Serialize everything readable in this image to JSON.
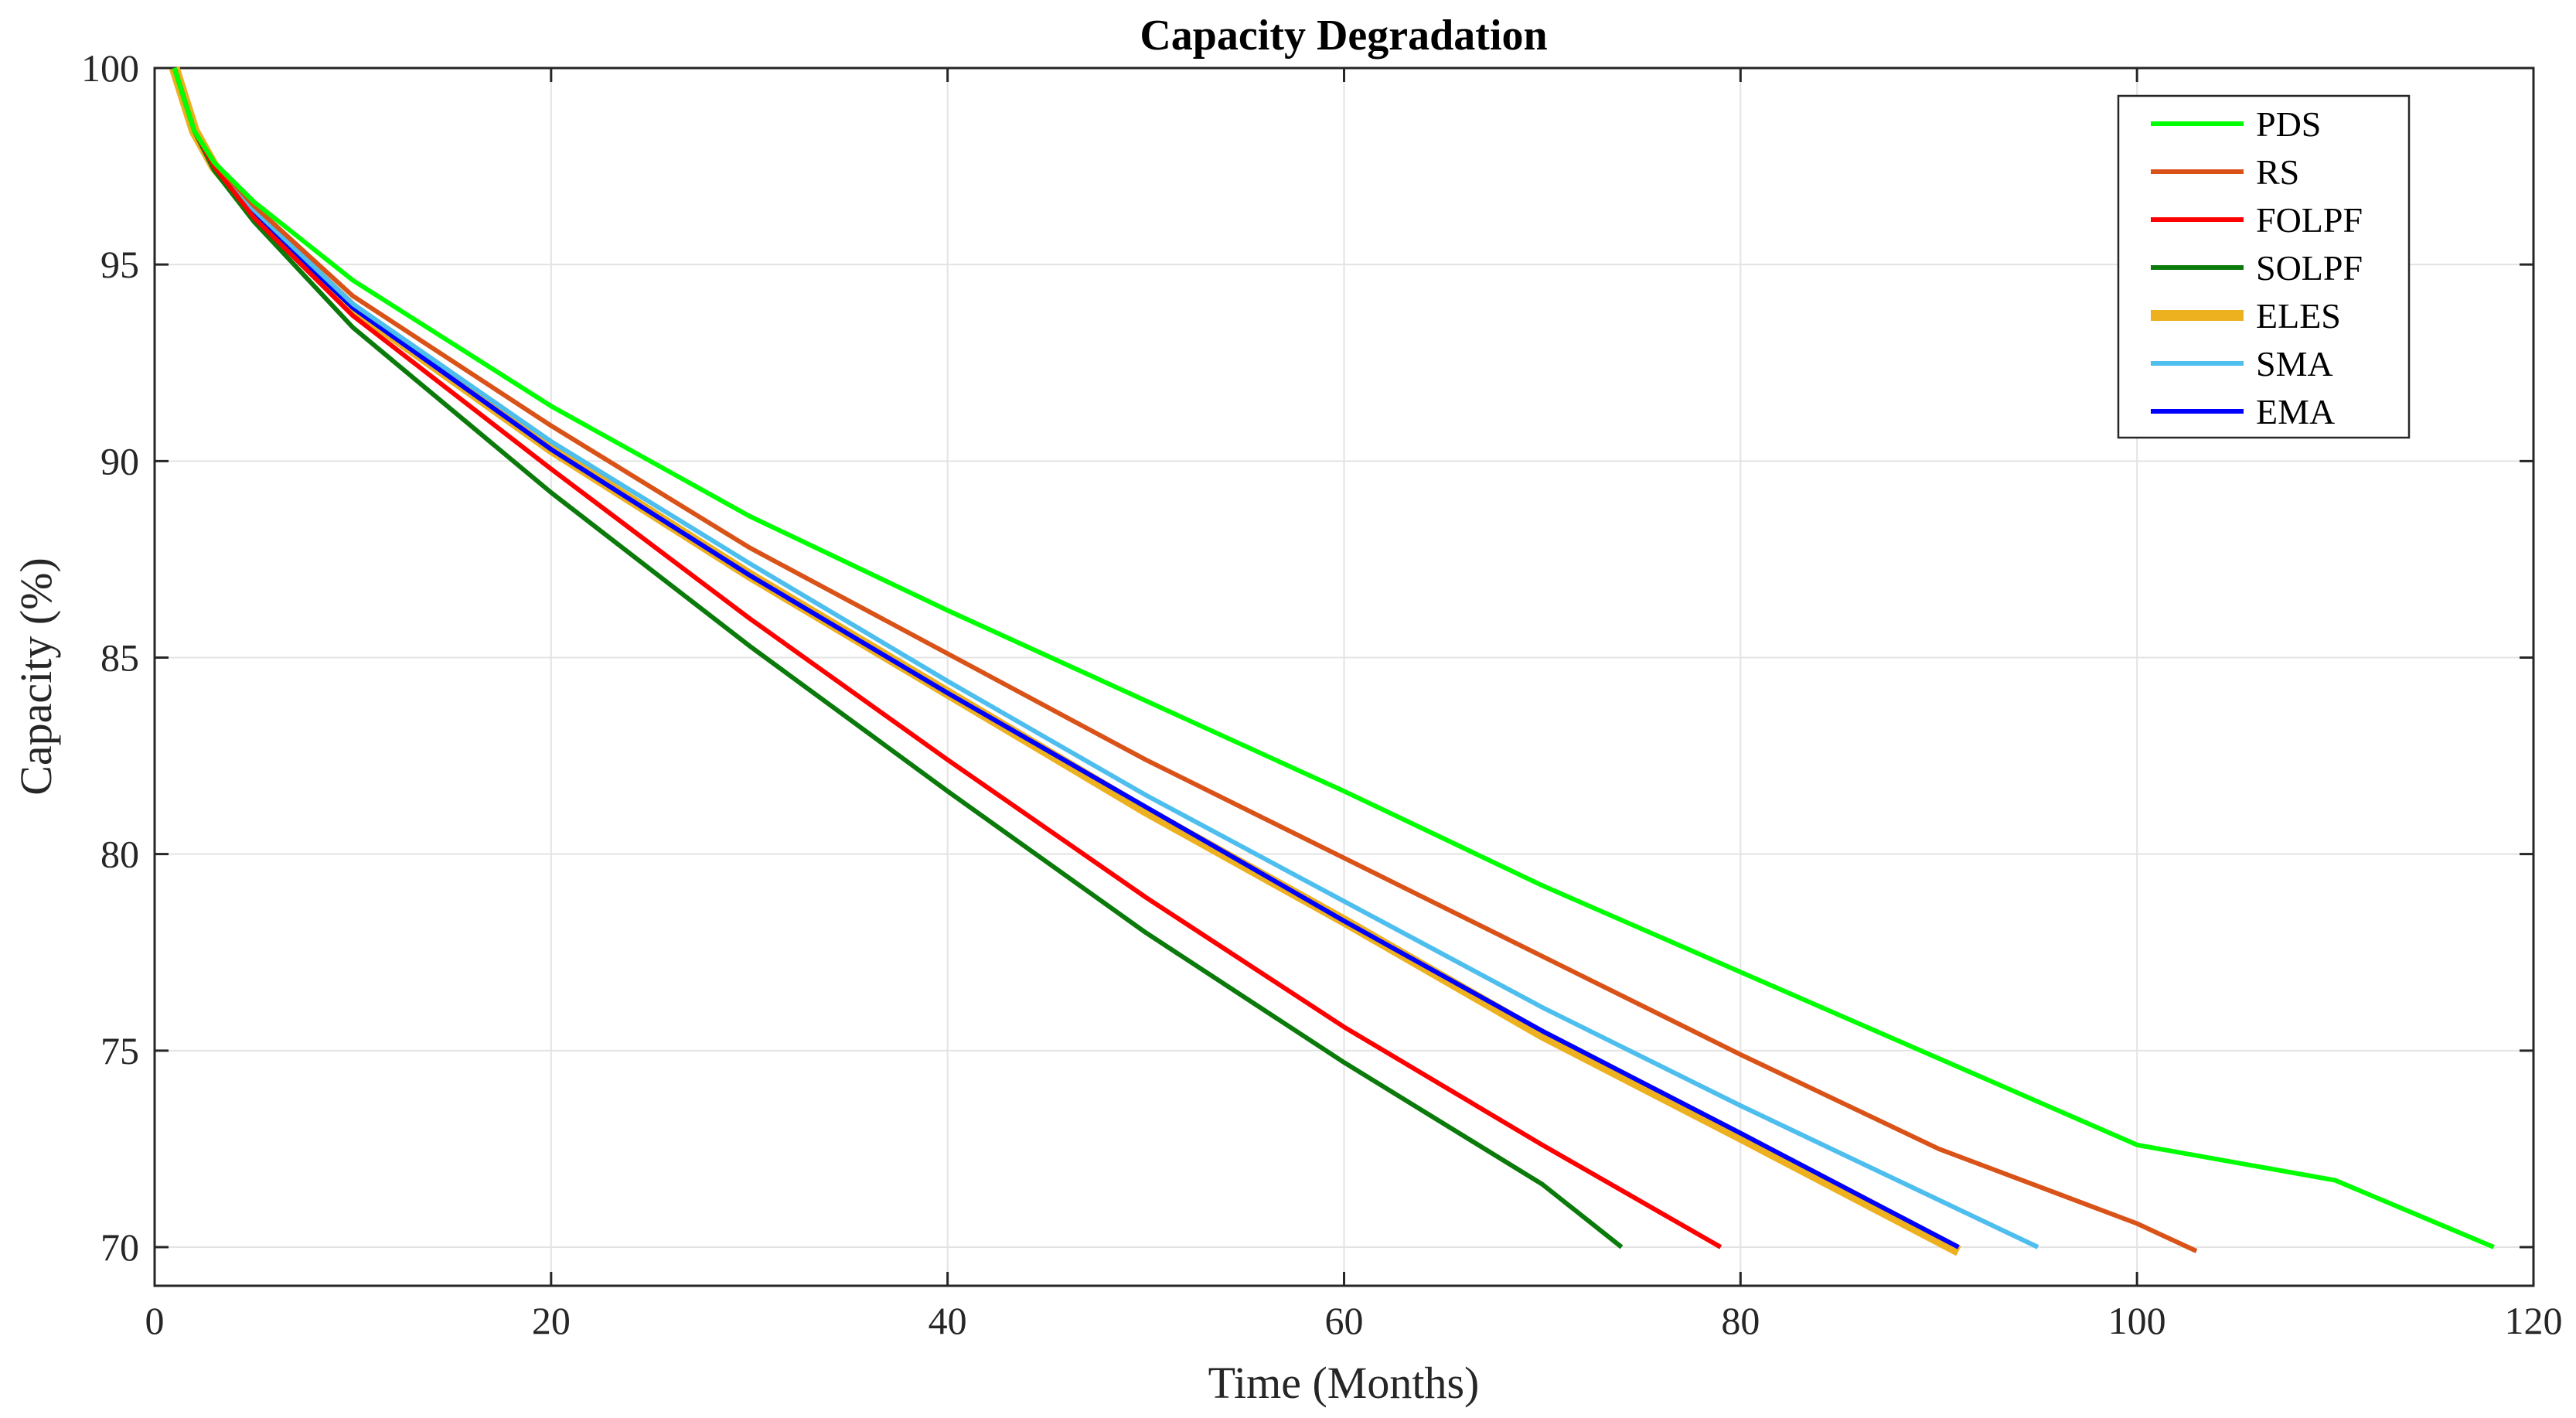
{
  "chart_data": {
    "type": "line",
    "title": "Capacity Degradation",
    "xlabel": "Time (Months)",
    "ylabel": "Capacity (%)",
    "xlim": [
      0,
      120
    ],
    "ylim": [
      69,
      100
    ],
    "xticks": [
      0,
      20,
      40,
      60,
      80,
      100,
      120
    ],
    "yticks": [
      70,
      75,
      80,
      85,
      90,
      95,
      100
    ],
    "grid": true,
    "legend_position": "top-right",
    "series": [
      {
        "name": "PDS",
        "color": "#00ff00",
        "end_month": 118,
        "x": [
          1,
          2,
          3,
          5,
          10,
          20,
          30,
          40,
          50,
          60,
          70,
          80,
          90,
          100,
          110,
          118
        ],
        "values": [
          100.0,
          98.4,
          97.6,
          96.6,
          94.6,
          91.4,
          88.6,
          86.2,
          83.9,
          81.6,
          79.2,
          77.0,
          74.8,
          72.6,
          71.7,
          70.0
        ]
      },
      {
        "name": "RS",
        "color": "#d95319",
        "end_month": 103,
        "x": [
          1,
          2,
          3,
          5,
          10,
          20,
          30,
          40,
          50,
          60,
          70,
          80,
          90,
          100,
          103
        ],
        "values": [
          100.0,
          98.4,
          97.6,
          96.5,
          94.2,
          90.9,
          87.8,
          85.1,
          82.4,
          79.9,
          77.4,
          74.9,
          72.5,
          70.6,
          69.9
        ]
      },
      {
        "name": "FOLPF",
        "color": "#ff0000",
        "end_month": 79,
        "x": [
          1,
          2,
          3,
          5,
          10,
          20,
          30,
          40,
          50,
          60,
          70,
          79
        ],
        "values": [
          100.0,
          98.4,
          97.5,
          96.2,
          93.7,
          89.8,
          86.0,
          82.4,
          78.9,
          75.6,
          72.6,
          70.0
        ]
      },
      {
        "name": "SOLPF",
        "color": "#0a7a0a",
        "end_month": 74,
        "x": [
          1,
          2,
          3,
          5,
          10,
          20,
          30,
          40,
          50,
          60,
          70,
          74
        ],
        "values": [
          100.0,
          98.4,
          97.4,
          96.1,
          93.4,
          89.2,
          85.3,
          81.6,
          78.0,
          74.7,
          71.6,
          70.0
        ]
      },
      {
        "name": "ELES",
        "color": "#edb120",
        "end_month": 91,
        "x": [
          1,
          2,
          3,
          5,
          10,
          20,
          30,
          40,
          50,
          60,
          70,
          80,
          91
        ],
        "values": [
          100.0,
          98.4,
          97.5,
          96.3,
          93.9,
          90.3,
          87.1,
          84.1,
          81.1,
          78.3,
          75.4,
          72.8,
          69.9
        ]
      },
      {
        "name": "SMA",
        "color": "#4dbeee",
        "end_month": 95,
        "x": [
          1,
          2,
          3,
          5,
          10,
          20,
          30,
          40,
          50,
          60,
          70,
          80,
          90,
          95
        ],
        "values": [
          100.0,
          98.4,
          97.5,
          96.4,
          94.0,
          90.5,
          87.4,
          84.4,
          81.5,
          78.8,
          76.1,
          73.6,
          71.2,
          70.0
        ]
      },
      {
        "name": "EMA",
        "color": "#0000ff",
        "end_month": 91,
        "x": [
          1,
          2,
          3,
          5,
          10,
          20,
          30,
          40,
          50,
          60,
          70,
          80,
          91
        ],
        "values": [
          100.0,
          98.4,
          97.5,
          96.3,
          93.9,
          90.3,
          87.1,
          84.1,
          81.2,
          78.3,
          75.5,
          72.9,
          70.0
        ]
      }
    ]
  }
}
